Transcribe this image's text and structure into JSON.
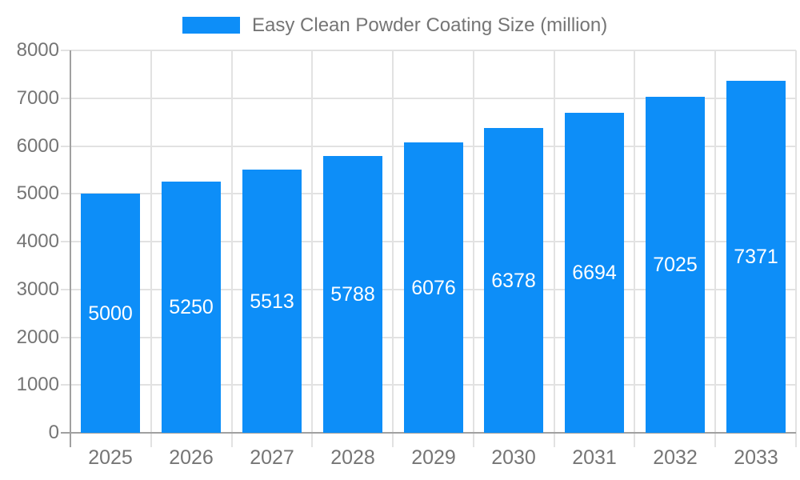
{
  "legend": {
    "label": "Easy Clean Powder Coating Size (million)"
  },
  "chart_data": {
    "type": "bar",
    "title": "Easy Clean Powder Coating Size (million)",
    "categories": [
      "2025",
      "2026",
      "2027",
      "2028",
      "2029",
      "2030",
      "2031",
      "2032",
      "2033"
    ],
    "values": [
      5000,
      5250,
      5513,
      5788,
      6076,
      6378,
      6694,
      7025,
      7371
    ],
    "xlabel": "",
    "ylabel": "",
    "ylim": [
      0,
      8000
    ],
    "y_ticks": [
      0,
      1000,
      2000,
      3000,
      4000,
      5000,
      6000,
      7000,
      8000
    ],
    "grid": true,
    "legend_position": "top",
    "bar_labels_inside": true,
    "colors": {
      "bar": "#0d8ef8",
      "bar_label_text": "#ffffff",
      "axis_text": "#757575",
      "grid_line": "#e2e2e2",
      "axis_line": "#a0a0a0",
      "background": "#ffffff"
    }
  }
}
